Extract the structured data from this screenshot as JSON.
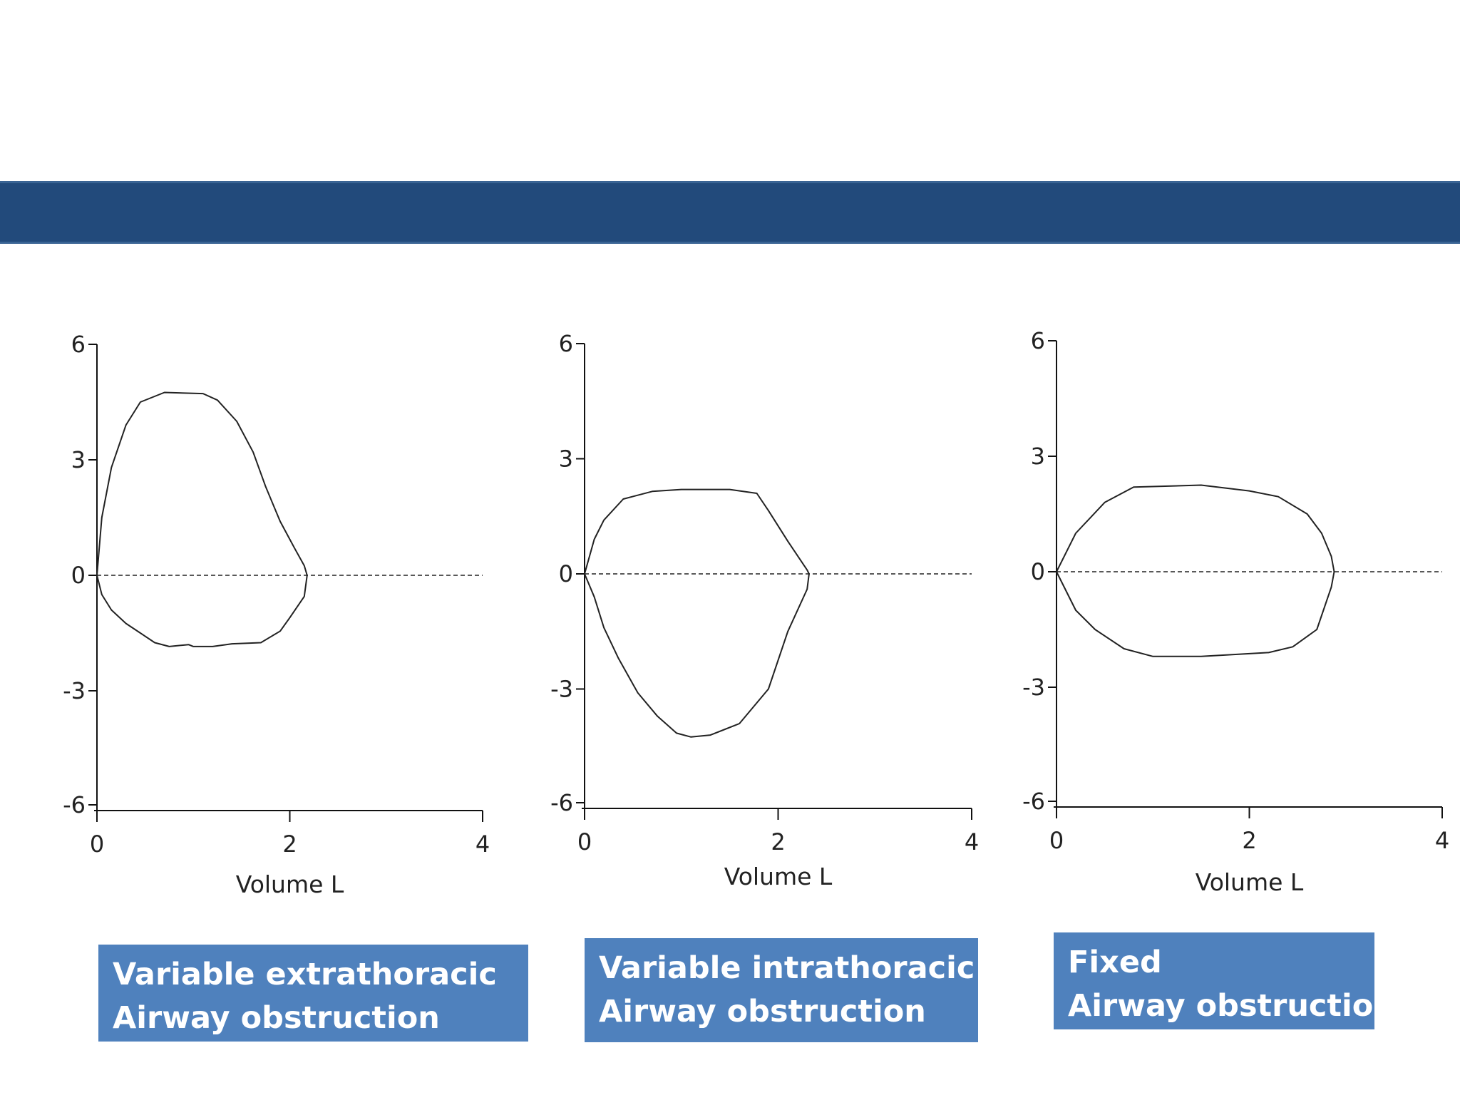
{
  "chart_data": [
    {
      "type": "line",
      "title": "",
      "xlabel": "Volume L",
      "ylabel": "",
      "xlim": [
        0,
        4
      ],
      "ylim": [
        -6,
        6
      ],
      "xticks": [
        "0",
        "2",
        "4"
      ],
      "yticks": [
        "6",
        "3",
        "0",
        "-3",
        "-6"
      ],
      "series": [
        {
          "x": [
            0,
            0.05,
            0.15,
            0.3,
            0.45,
            0.7,
            1.1,
            1.25,
            1.45,
            1.62,
            1.75,
            1.9,
            2.05,
            2.15,
            2.18,
            2.15,
            2.0,
            1.9,
            1.7,
            1.4,
            1.2,
            1.0,
            0.95,
            0.75,
            0.6,
            0.45,
            0.3,
            0.15,
            0.05,
            0
          ],
          "y": [
            0,
            1.5,
            2.8,
            3.9,
            4.5,
            4.75,
            4.72,
            4.55,
            4.0,
            3.2,
            2.3,
            1.4,
            0.7,
            0.25,
            0,
            -0.55,
            -1.1,
            -1.45,
            -1.75,
            -1.78,
            -1.85,
            -1.85,
            -1.8,
            -1.85,
            -1.75,
            -1.5,
            -1.25,
            -0.9,
            -0.5,
            0
          ]
        }
      ],
      "reference_line_y": 0,
      "grid": false,
      "caption_lines": [
        "Variable extrathoracic",
        "Airway obstruction"
      ]
    },
    {
      "type": "line",
      "title": "",
      "xlabel": "Volume L",
      "ylabel": "",
      "xlim": [
        0,
        4
      ],
      "ylim": [
        -6,
        6
      ],
      "xticks": [
        "0",
        "2",
        "4"
      ],
      "yticks": [
        "6",
        "3",
        "0",
        "-3",
        "-6"
      ],
      "series": [
        {
          "x": [
            0,
            0.1,
            0.2,
            0.4,
            0.7,
            1.0,
            1.5,
            1.78,
            1.9,
            2.1,
            2.3,
            2.32,
            2.3,
            2.1,
            1.9,
            1.6,
            1.3,
            1.1,
            0.95,
            0.75,
            0.55,
            0.35,
            0.2,
            0.1,
            0
          ],
          "y": [
            0,
            0.9,
            1.4,
            1.95,
            2.15,
            2.2,
            2.2,
            2.1,
            1.65,
            0.85,
            0.1,
            0,
            -0.4,
            -1.5,
            -3.0,
            -3.9,
            -4.2,
            -4.25,
            -4.15,
            -3.7,
            -3.1,
            -2.2,
            -1.4,
            -0.6,
            0
          ]
        }
      ],
      "reference_line_y": 0,
      "grid": false,
      "caption_lines": [
        "Variable intrathoracic",
        "Airway obstruction"
      ]
    },
    {
      "type": "line",
      "title": "",
      "xlabel": "Volume L",
      "ylabel": "",
      "xlim": [
        0,
        4
      ],
      "ylim": [
        -6,
        6
      ],
      "xticks": [
        "0",
        "2",
        "4"
      ],
      "yticks": [
        "6",
        "3",
        "0",
        "-3",
        "-6"
      ],
      "series": [
        {
          "x": [
            0,
            0.2,
            0.5,
            0.8,
            1.5,
            2.0,
            2.3,
            2.6,
            2.75,
            2.85,
            2.88,
            2.85,
            2.7,
            2.45,
            2.2,
            1.5,
            1.0,
            0.7,
            0.4,
            0.2,
            0
          ],
          "y": [
            0,
            1.0,
            1.8,
            2.2,
            2.25,
            2.1,
            1.95,
            1.5,
            1.0,
            0.4,
            0,
            -0.4,
            -1.5,
            -1.95,
            -2.1,
            -2.2,
            -2.2,
            -2.0,
            -1.5,
            -1.0,
            0
          ]
        }
      ],
      "reference_line_y": 0,
      "grid": false,
      "caption_lines": [
        "Fixed",
        "Airway obstruction"
      ]
    }
  ]
}
